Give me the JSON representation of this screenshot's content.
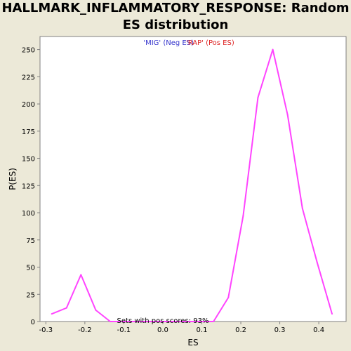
{
  "chart_data": {
    "type": "line",
    "title": "HALLMARK_INFLAMMATORY_RESPONSE: Random ES distribution",
    "xlabel": "ES",
    "ylabel": "P(ES)",
    "xlim": [
      -0.315,
      0.47
    ],
    "ylim": [
      0,
      262
    ],
    "x_ticks": [
      "-0.3",
      "-0.2",
      "-0.1",
      "0.0",
      "0.1",
      "0.2",
      "0.3",
      "0.4"
    ],
    "x_tick_values": [
      -0.3,
      -0.2,
      -0.1,
      0.0,
      0.1,
      0.2,
      0.3,
      0.4
    ],
    "y_ticks": [
      "0",
      "25",
      "50",
      "75",
      "100",
      "125",
      "150",
      "175",
      "200",
      "225",
      "250"
    ],
    "y_tick_values": [
      0,
      25,
      50,
      75,
      100,
      125,
      150,
      175,
      200,
      225,
      250
    ],
    "series": [
      {
        "color": "#ff44ff",
        "x": [
          -0.285,
          -0.247,
          -0.21,
          -0.172,
          -0.135,
          0.13,
          0.168,
          0.206,
          0.244,
          0.282,
          0.32,
          0.358,
          0.396,
          0.434
        ],
        "y": [
          7,
          12.5,
          43,
          10.5,
          0,
          0,
          22,
          97,
          206,
          250,
          190,
          104,
          54,
          7
        ]
      }
    ],
    "annotations": {
      "neg_label": "'MIG' (Neg ES)",
      "pos_label": "'RAP' (Pos ES)",
      "pos_scores": "Sets with pos scores: 93%"
    },
    "colors": {
      "neg_label": "#3333cc",
      "pos_label": "#dd2222",
      "line": "#ff44ff",
      "plot_background": "#ffffff",
      "page_background": "#ece9d8"
    },
    "grid": false
  }
}
